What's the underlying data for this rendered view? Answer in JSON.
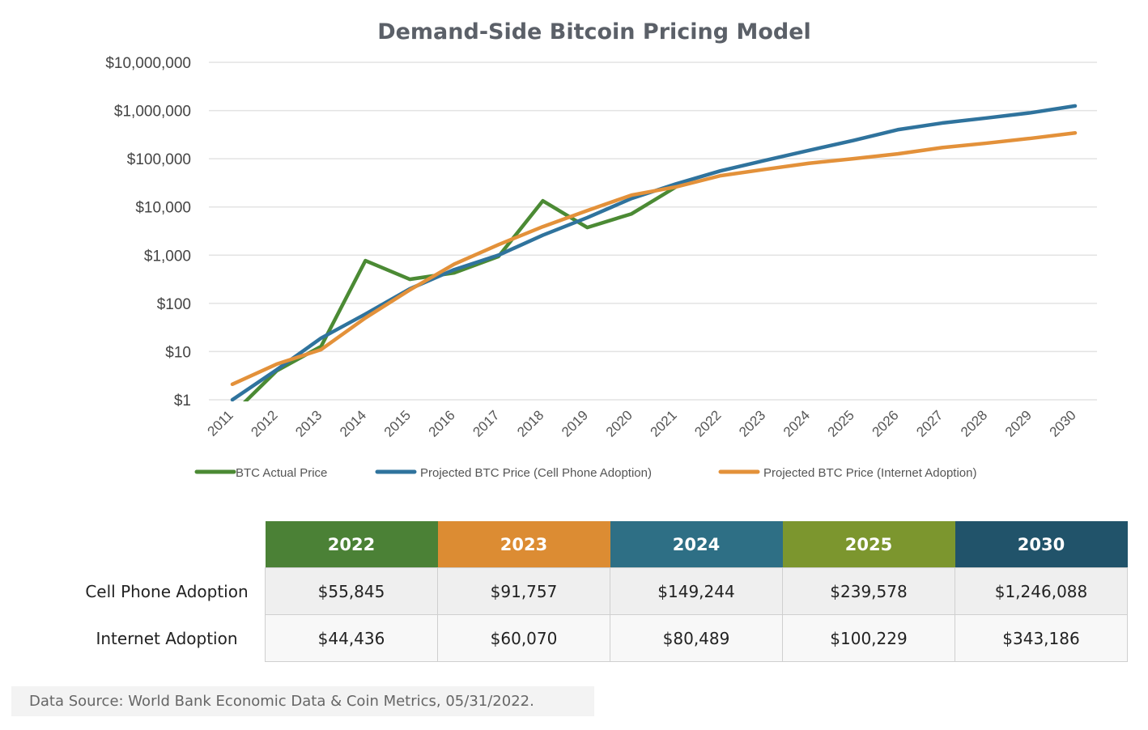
{
  "chart_data": {
    "type": "line",
    "title": "Demand-Side Bitcoin Pricing Model",
    "xlabel": "",
    "ylabel": "",
    "yscale": "log",
    "ylim": [
      1,
      10000000
    ],
    "y_ticks": [
      "$1",
      "$10",
      "$100",
      "$1,000",
      "$10,000",
      "$100,000",
      "$1,000,000",
      "$10,000,000"
    ],
    "y_tick_values": [
      1,
      10,
      100,
      1000,
      10000,
      100000,
      1000000,
      10000000
    ],
    "x": [
      2011,
      2012,
      2013,
      2014,
      2015,
      2016,
      2017,
      2018,
      2019,
      2020,
      2021,
      2022,
      2023,
      2024,
      2025,
      2026,
      2027,
      2028,
      2029,
      2030
    ],
    "grid": "horizontal",
    "legend_position": "bottom",
    "series": [
      {
        "name": "BTC Actual Price",
        "color": "#4b8a34",
        "values": [
          0.5,
          4,
          12.8,
          770,
          316,
          430,
          940,
          13400,
          3750,
          7200,
          26000,
          null,
          null,
          null,
          null,
          null,
          null,
          null,
          null,
          null
        ]
      },
      {
        "name": "Projected BTC Price (Cell Phone Adoption)",
        "color": "#2f739d",
        "values": [
          1.0,
          4.2,
          19,
          60,
          200,
          500,
          1000,
          2600,
          6000,
          15000,
          30000,
          55845,
          91757,
          149244,
          239578,
          400000,
          550000,
          700000,
          900000,
          1246088
        ]
      },
      {
        "name": "Projected BTC Price (Internet Adoption)",
        "color": "#e3913a",
        "values": [
          2.1,
          5.5,
          11,
          50,
          190,
          650,
          1650,
          3900,
          8400,
          17600,
          26000,
          44436,
          60070,
          80489,
          100229,
          126000,
          170000,
          210000,
          265000,
          343186
        ]
      }
    ]
  },
  "table": {
    "columns": [
      {
        "label": "2022",
        "color": "#4b8136"
      },
      {
        "label": "2023",
        "color": "#dc8c33"
      },
      {
        "label": "2024",
        "color": "#2e6f85"
      },
      {
        "label": "2025",
        "color": "#7c962e"
      },
      {
        "label": "2030",
        "color": "#21536a"
      }
    ],
    "rows": [
      {
        "label": "Cell Phone Adoption",
        "values": [
          "$55,845",
          "$91,757",
          "$149,244",
          "$239,578",
          "$1,246,088"
        ]
      },
      {
        "label": "Internet Adoption",
        "values": [
          "$44,436",
          "$60,070",
          "$80,489",
          "$100,229",
          "$343,186"
        ]
      }
    ]
  },
  "footer": {
    "source": "Data Source: World Bank Economic Data & Coin Metrics, 05/31/2022."
  }
}
